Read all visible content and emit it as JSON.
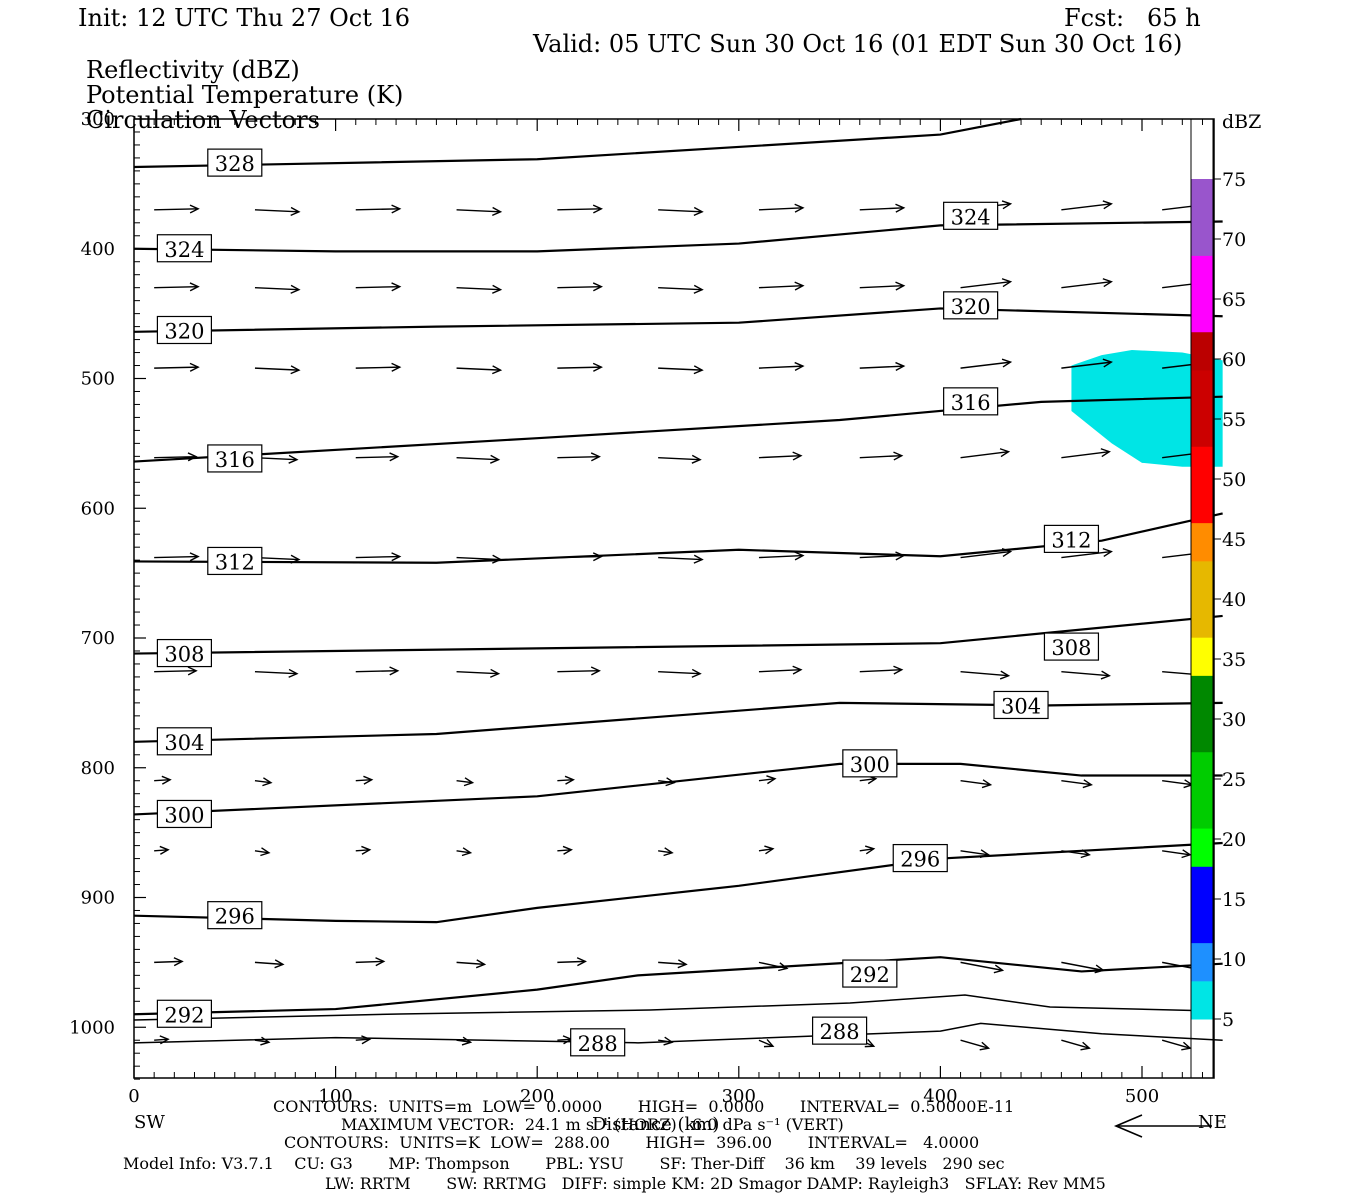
{
  "header": {
    "init": "Init: 12 UTC Thu 27 Oct 16",
    "fcst": "Fcst:   65 h",
    "valid": "Valid: 05 UTC Sun 30 Oct 16 (01 EDT Sun 30 Oct 16)",
    "fields": [
      "Reflectivity (dBZ)",
      "Potential Temperature (K)",
      "Circulation Vectors"
    ]
  },
  "axes": {
    "y_ticks": [
      "300",
      "400",
      "500",
      "600",
      "700",
      "800",
      "900",
      "1000"
    ],
    "x_ticks": [
      "0",
      "100",
      "200",
      "300",
      "400",
      "500"
    ],
    "x_label": "Distance (km)",
    "left_end": "SW",
    "right_end": "NE"
  },
  "colorbar": {
    "unit": "dBZ",
    "labels": [
      "75",
      "70",
      "65",
      "60",
      "55",
      "50",
      "45",
      "40",
      "35",
      "30",
      "25",
      "20",
      "15",
      "10",
      "5"
    ],
    "colors": [
      "#00e5e5",
      "#1e90ff",
      "#0000ff",
      "#0000ff",
      "#00ff00",
      "#00cc00",
      "#00cc00",
      "#008800",
      "#008800",
      "#ffff00",
      "#e6b800",
      "#e6b800",
      "#ff8c00",
      "#ff0000",
      "#ff0000",
      "#cc0000",
      "#cc0000",
      "#bb0000",
      "#ff00ff",
      "#ff00ff",
      "#9955cc",
      "#9955cc"
    ]
  },
  "theta_contours": {
    "labels": [
      "328",
      "324",
      "324",
      "320",
      "320",
      "316",
      "316",
      "312",
      "312",
      "308",
      "308",
      "304",
      "304",
      "300",
      "300",
      "296",
      "296",
      "292",
      "292",
      "288",
      "288"
    ]
  },
  "footer": {
    "line1": "CONTOURS:  UNITS=m  LOW=  0.0000       HIGH=  0.0000       INTERVAL=  0.50000E-11",
    "line2": "MAXIMUM VECTOR:  24.1 m s⁻¹ (HORZ)   6.0 dPa s⁻¹ (VERT)",
    "line3": "CONTOURS:  UNITS=K  LOW=  288.00       HIGH=  396.00       INTERVAL=   4.0000",
    "line4": "Model Info: V3.7.1    CU: G3       MP: Thompson       PBL: YSU       SF: Ther-Diff    36 km    39 levels   290 sec",
    "line5": "LW: RRTM       SW: RRTMG   DIFF: simple KM: 2D Smagor DAMP: Rayleigh3   SFLAY: Rev MM5"
  },
  "chart_data": {
    "type": "cross-section",
    "x_range_km": [
      0,
      540
    ],
    "y_range_hPa": [
      300,
      1040
    ],
    "isentropes_K": {
      "328": [
        [
          0,
          337
        ],
        [
          200,
          331
        ],
        [
          400,
          312
        ],
        [
          440,
          300
        ]
      ],
      "324": [
        [
          0,
          400
        ],
        [
          100,
          402
        ],
        [
          200,
          402
        ],
        [
          300,
          396
        ],
        [
          400,
          382
        ],
        [
          540,
          379
        ]
      ],
      "320": [
        [
          0,
          464
        ],
        [
          150,
          460
        ],
        [
          300,
          457
        ],
        [
          400,
          446
        ],
        [
          540,
          452
        ]
      ],
      "316": [
        [
          0,
          564
        ],
        [
          200,
          546
        ],
        [
          350,
          532
        ],
        [
          450,
          518
        ],
        [
          540,
          514
        ]
      ],
      "312": [
        [
          0,
          641
        ],
        [
          150,
          642
        ],
        [
          300,
          632
        ],
        [
          400,
          637
        ],
        [
          480,
          625
        ],
        [
          540,
          604
        ]
      ],
      "308": [
        [
          0,
          712
        ],
        [
          200,
          708
        ],
        [
          400,
          704
        ],
        [
          540,
          683
        ]
      ],
      "304": [
        [
          0,
          780
        ],
        [
          150,
          774
        ],
        [
          350,
          750
        ],
        [
          450,
          752
        ],
        [
          540,
          750
        ]
      ],
      "300": [
        [
          0,
          836
        ],
        [
          200,
          822
        ],
        [
          350,
          797
        ],
        [
          410,
          797
        ],
        [
          470,
          806
        ],
        [
          540,
          806
        ]
      ],
      "296": [
        [
          0,
          914
        ],
        [
          100,
          918
        ],
        [
          150,
          919
        ],
        [
          200,
          908
        ],
        [
          300,
          891
        ],
        [
          400,
          870
        ],
        [
          470,
          864
        ],
        [
          540,
          858
        ]
      ],
      "292": [
        [
          0,
          990
        ],
        [
          100,
          986
        ],
        [
          200,
          971
        ],
        [
          250,
          960
        ],
        [
          400,
          946
        ],
        [
          470,
          957
        ],
        [
          540,
          951
        ]
      ],
      "288": [
        [
          0,
          1012
        ],
        [
          100,
          1008
        ],
        [
          250,
          1012
        ],
        [
          400,
          1003
        ],
        [
          420,
          997
        ],
        [
          480,
          1005
        ],
        [
          540,
          1010
        ]
      ]
    },
    "reflectivity_dBZ": {
      "region_km_hPa": [
        [
          465,
          490
        ],
        [
          480,
          482
        ],
        [
          495,
          478
        ],
        [
          520,
          480
        ],
        [
          540,
          486
        ],
        [
          540,
          568
        ],
        [
          520,
          568
        ],
        [
          500,
          565
        ],
        [
          485,
          550
        ],
        [
          465,
          525
        ]
      ],
      "value": "5-10"
    },
    "vector_rows_hPa": [
      370,
      430,
      492,
      561,
      638,
      726,
      810,
      864,
      950,
      1010
    ]
  }
}
